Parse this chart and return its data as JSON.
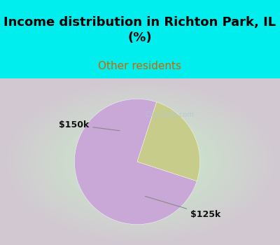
{
  "title": "Income distribution in Richton Park, IL\n(%)",
  "subtitle": "Other residents",
  "title_fontsize": 13,
  "subtitle_fontsize": 11,
  "bg_cyan": "#00EEEE",
  "chart_bg": "#e0f0e0",
  "slices": [
    75,
    25
  ],
  "slice_colors": [
    "#C9A8D8",
    "#C8CC8A"
  ],
  "startangle": 72,
  "label_150k": "$150k",
  "label_125k": "$125k",
  "label_fontsize": 9,
  "watermark": "City-Data.com"
}
